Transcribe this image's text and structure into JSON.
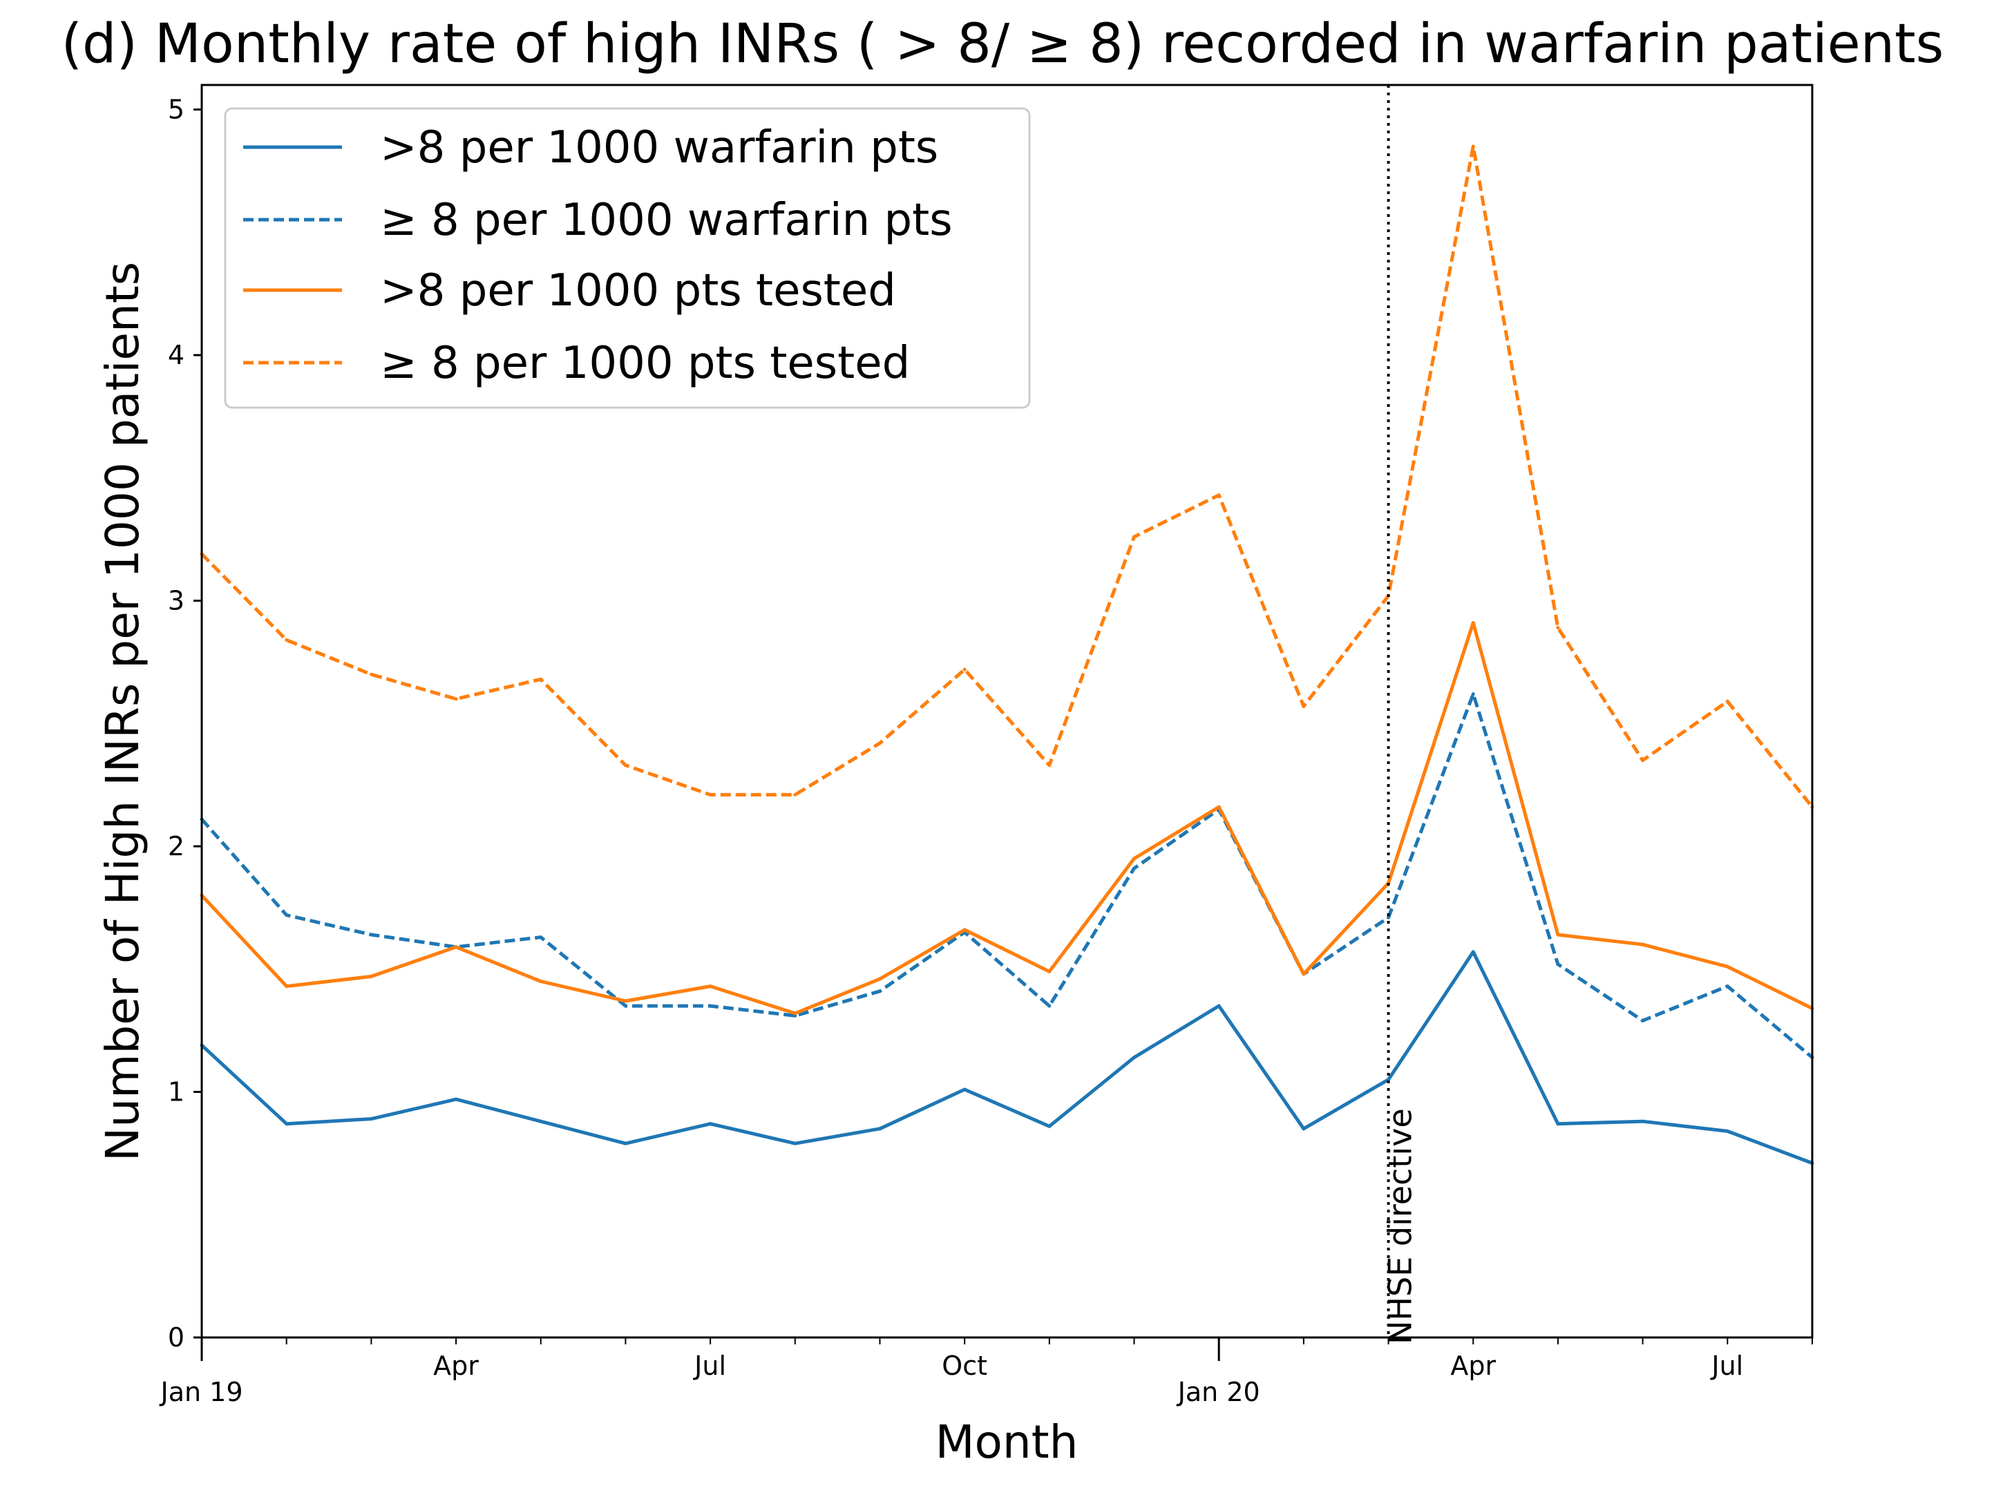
{
  "chart_data": {
    "type": "line",
    "title": "(d) Monthly rate of high INRs ( > 8/ ≥ 8) recorded in warfarin patients",
    "xlabel": "Month",
    "ylabel": "Number of High INRs per 1000 patients",
    "x": [
      "2019-01",
      "2019-02",
      "2019-03",
      "2019-04",
      "2019-05",
      "2019-06",
      "2019-07",
      "2019-08",
      "2019-09",
      "2019-10",
      "2019-11",
      "2019-12",
      "2020-01",
      "2020-02",
      "2020-03",
      "2020-04",
      "2020-05",
      "2020-06",
      "2020-07",
      "2020-08"
    ],
    "xlim": [
      "2019-01",
      "2020-08"
    ],
    "ylim": [
      0,
      5.1
    ],
    "x_major_ticks": [
      {
        "x": "2019-01",
        "label": "Jan 19",
        "major": true
      },
      {
        "x": "2019-04",
        "label": "Apr",
        "major": false
      },
      {
        "x": "2019-07",
        "label": "Jul",
        "major": false
      },
      {
        "x": "2019-10",
        "label": "Oct",
        "major": false
      },
      {
        "x": "2020-01",
        "label": "Jan 20",
        "major": true
      },
      {
        "x": "2020-04",
        "label": "Apr",
        "major": false
      },
      {
        "x": "2020-07",
        "label": "Jul",
        "major": false
      }
    ],
    "y_ticks": [
      {
        "value": 0,
        "label": "0"
      },
      {
        "value": 1,
        "label": "1"
      },
      {
        "value": 2,
        "label": "2"
      },
      {
        "value": 3,
        "label": "3"
      },
      {
        "value": 4,
        "label": "4"
      },
      {
        "value": 5,
        "label": "5"
      }
    ],
    "series": [
      {
        "name": ">8 per 1000 warfarin pts",
        "color": "#1f77b4",
        "style": "solid",
        "values": [
          1.19,
          0.87,
          0.89,
          0.97,
          0.88,
          0.79,
          0.87,
          0.79,
          0.85,
          1.01,
          0.86,
          1.14,
          1.35,
          0.85,
          1.05,
          1.57,
          0.87,
          0.88,
          0.84,
          0.71
        ]
      },
      {
        "name": "≥ 8 per 1000 warfarin pts",
        "color": "#1f77b4",
        "style": "dashed",
        "values": [
          2.11,
          1.72,
          1.64,
          1.59,
          1.63,
          1.35,
          1.35,
          1.31,
          1.41,
          1.65,
          1.35,
          1.91,
          2.15,
          1.48,
          1.71,
          2.62,
          1.52,
          1.29,
          1.43,
          1.14
        ]
      },
      {
        "name": ">8 per 1000 pts tested",
        "color": "#ff7f0e",
        "style": "solid",
        "values": [
          1.8,
          1.43,
          1.47,
          1.59,
          1.45,
          1.37,
          1.43,
          1.32,
          1.46,
          1.66,
          1.49,
          1.95,
          2.16,
          1.48,
          1.85,
          2.91,
          1.64,
          1.6,
          1.51,
          1.34
        ]
      },
      {
        "name": "≥ 8 per 1000 pts tested",
        "color": "#ff7f0e",
        "style": "dashed",
        "values": [
          3.19,
          2.84,
          2.7,
          2.6,
          2.68,
          2.33,
          2.21,
          2.21,
          2.42,
          2.72,
          2.33,
          3.26,
          3.43,
          2.57,
          3.02,
          4.85,
          2.89,
          2.35,
          2.59,
          2.16
        ]
      }
    ],
    "annotation": {
      "x": "2020-03",
      "text": "NHSE directive",
      "line_style": "dotted",
      "color": "#000000"
    },
    "legend_position": "top-left",
    "grid": false
  }
}
